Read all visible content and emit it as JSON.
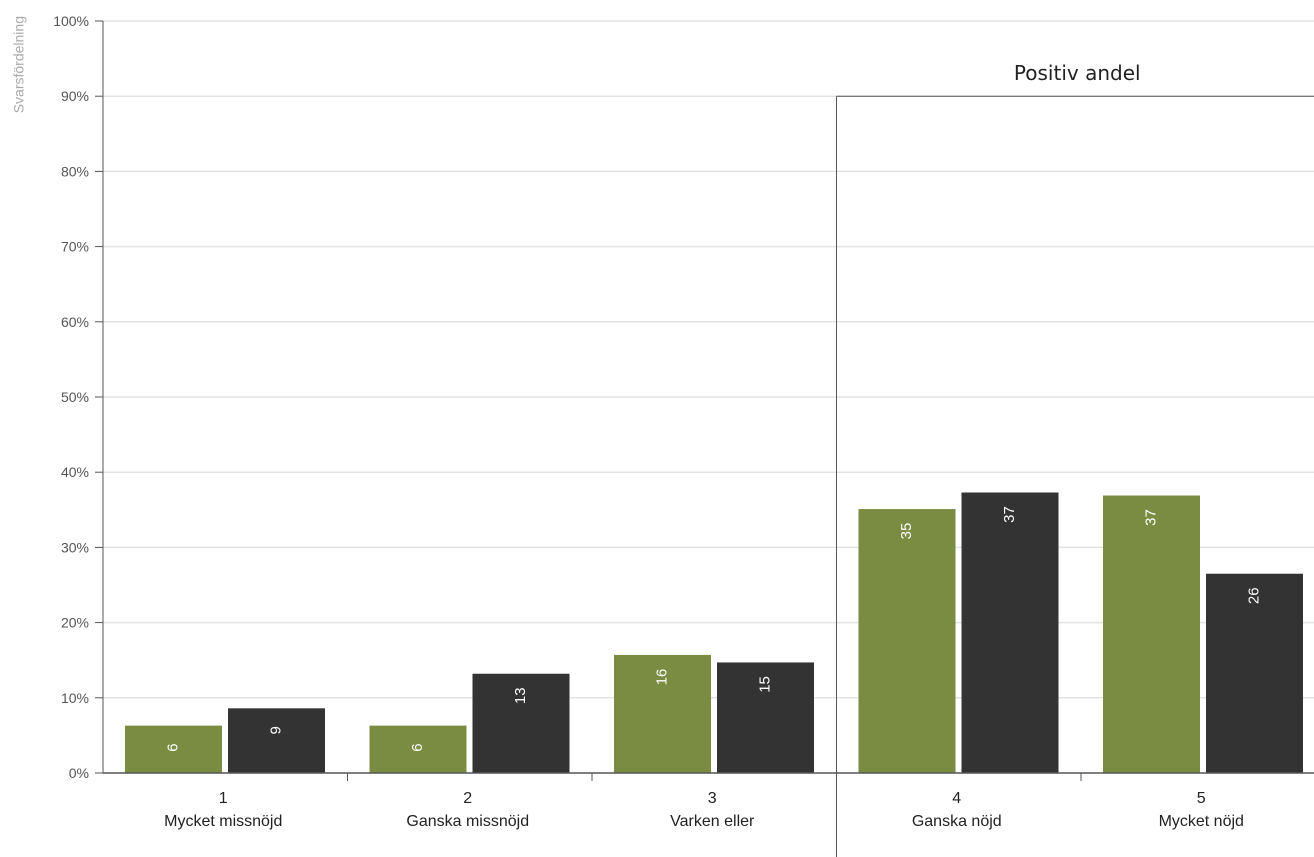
{
  "chart_data": {
    "type": "bar",
    "ylabel": "Svarsfördelning",
    "ylim": [
      0,
      100
    ],
    "yticks": [
      "0%",
      "10%",
      "20%",
      "30%",
      "40%",
      "50%",
      "60%",
      "70%",
      "80%",
      "90%",
      "100%"
    ],
    "categories": [
      {
        "number": "1",
        "name": "Mycket missnöjd"
      },
      {
        "number": "2",
        "name": "Ganska missnöjd"
      },
      {
        "number": "3",
        "name": "Varken eller"
      },
      {
        "number": "4",
        "name": "Ganska nöjd"
      },
      {
        "number": "5",
        "name": "Mycket nöjd"
      }
    ],
    "series": [
      {
        "color": "#7a8c42",
        "values": [
          6.3,
          6.3,
          15.7,
          35.1,
          36.9
        ],
        "labels": [
          "6",
          "6",
          "16",
          "35",
          "37"
        ]
      },
      {
        "color": "#333333",
        "values": [
          8.6,
          13.2,
          14.7,
          37.3,
          26.5
        ],
        "labels": [
          "9",
          "13",
          "15",
          "37",
          "26"
        ]
      }
    ],
    "highlight_box": {
      "title": "Positiv andel",
      "categories": [
        "4",
        "5"
      ],
      "top_value": 90
    },
    "grid": true
  }
}
